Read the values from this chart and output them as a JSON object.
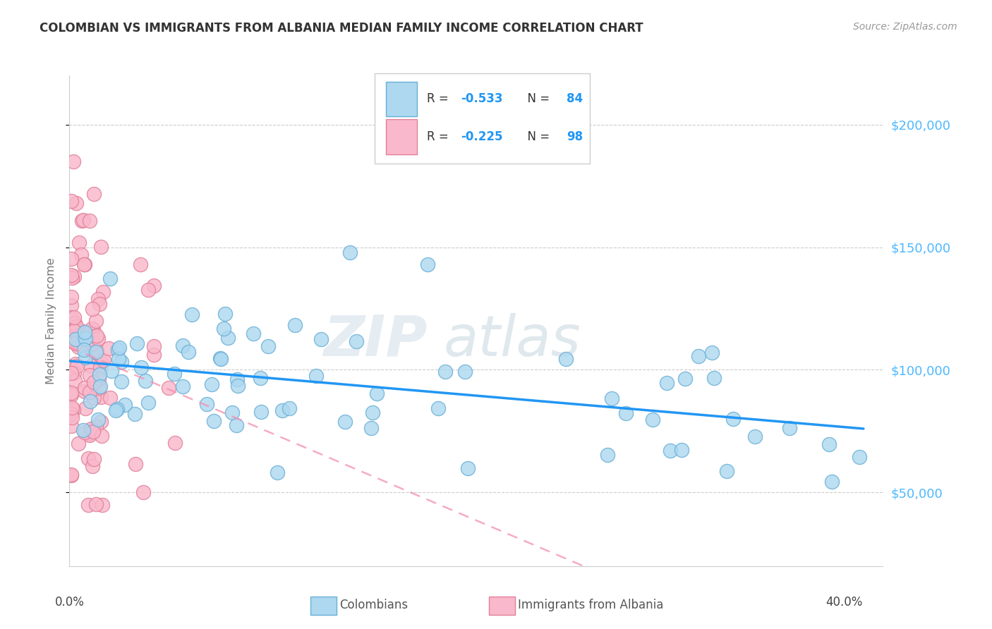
{
  "title": "COLOMBIAN VS IMMIGRANTS FROM ALBANIA MEDIAN FAMILY INCOME CORRELATION CHART",
  "source": "Source: ZipAtlas.com",
  "ylabel": "Median Family Income",
  "yticks": [
    50000,
    100000,
    150000,
    200000
  ],
  "ytick_labels": [
    "$50,000",
    "$100,000",
    "$150,000",
    "$200,000"
  ],
  "xlim": [
    0.0,
    0.42
  ],
  "ylim": [
    20000,
    220000
  ],
  "legend_blue_r": "-0.533",
  "legend_blue_n": "84",
  "legend_pink_r": "-0.225",
  "legend_pink_n": "98",
  "watermark_zip": "ZIP",
  "watermark_atlas": "atlas",
  "blue_fill": "#add8f0",
  "blue_edge": "#6aafd6",
  "pink_fill": "#f9b8cb",
  "pink_edge": "#e08098",
  "blue_line": "#2196F3",
  "pink_line": "#f48fb1",
  "grid_color": "#cccccc",
  "title_color": "#333333",
  "source_color": "#999999",
  "ylabel_color": "#777777",
  "right_tick_color": "#4db8ff",
  "legend_text_color": "#333333",
  "legend_val_color": "#2196F3"
}
